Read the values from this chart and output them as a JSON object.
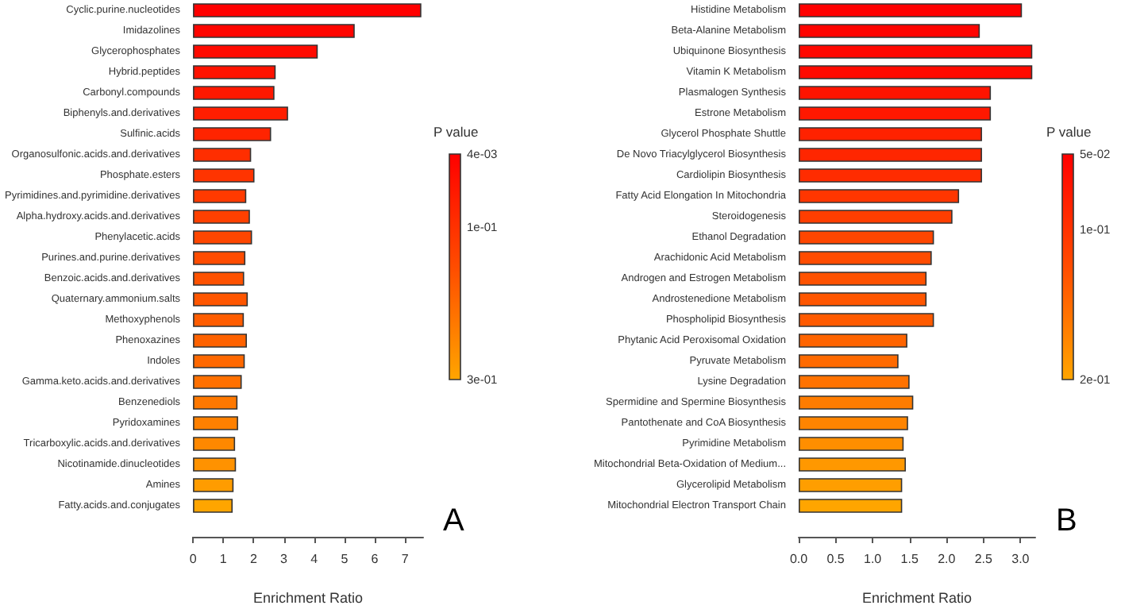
{
  "chart_data": [
    {
      "type": "bar",
      "orientation": "horizontal",
      "xlabel": "Enrichment Ratio",
      "clabel": "P value",
      "categories": [
        "Cyclic.purine.nucleotides",
        "Imidazolines",
        "Glycerophosphates",
        "Hybrid.peptides",
        "Carbonyl.compounds",
        "Biphenyls.and.derivatives",
        "Sulfinic.acids",
        "Organosulfonic.acids.and.derivatives",
        "Phosphate.esters",
        "Pyrimidines.and.pyrimidine.derivatives",
        "Alpha.hydroxy.acids.and.derivatives",
        "Phenylacetic.acids",
        "Purines.and.purine.derivatives",
        "Benzoic.acids.and.derivatives",
        "Quaternary.ammonium.salts",
        "Methoxyphenols",
        "Phenoxazines",
        "Indoles",
        "Gamma.keto.acids.and.derivatives",
        "Benzenediols",
        "Pyridoxamines",
        "Tricarboxylic.acids.and.derivatives",
        "Nicotinamide.dinucleotides",
        "Amines",
        "Fatty.acids.and.conjugates"
      ],
      "values": [
        7.54,
        5.34,
        4.12,
        2.73,
        2.69,
        3.14,
        2.58,
        1.92,
        2.03,
        1.76,
        1.88,
        1.95,
        1.73,
        1.69,
        1.81,
        1.68,
        1.78,
        1.71,
        1.61,
        1.47,
        1.49,
        1.39,
        1.42,
        1.34,
        1.31
      ],
      "colors": [
        "#ff0000",
        "#ff0500",
        "#ff0a00",
        "#ff1200",
        "#ff1800",
        "#ff1e00",
        "#ff2400",
        "#ff2e00",
        "#ff3400",
        "#ff3a00",
        "#ff4000",
        "#ff4600",
        "#ff4c00",
        "#ff5200",
        "#ff5600",
        "#ff5c00",
        "#ff6200",
        "#ff6800",
        "#ff7000",
        "#ff7800",
        "#ff8000",
        "#ff8800",
        "#ff9200",
        "#ff9c00",
        "#ffa500"
      ],
      "xlim": [
        0,
        7.6
      ],
      "xticks": [
        0,
        1,
        2,
        3,
        4,
        5,
        6,
        7
      ],
      "clim": [
        0.004,
        0.3
      ],
      "cticks": [
        {
          "value": 0.004,
          "label": "4e-03"
        },
        {
          "value": 0.1,
          "label": "1e-01"
        },
        {
          "value": 0.3,
          "label": "3e-01"
        }
      ],
      "annotations": [
        "A"
      ]
    },
    {
      "type": "bar",
      "orientation": "horizontal",
      "xlabel": "Enrichment Ratio",
      "clabel": "P value",
      "categories": [
        "Histidine Metabolism",
        "Beta-Alanine Metabolism",
        "Ubiquinone Biosynthesis",
        "Vitamin K Metabolism",
        "Plasmalogen Synthesis",
        "Estrone Metabolism",
        "Glycerol Phosphate Shuttle",
        "De Novo Triacylglycerol Biosynthesis",
        "Cardiolipin Biosynthesis",
        "Fatty Acid Elongation In Mitochondria",
        "Steroidogenesis",
        "Ethanol Degradation",
        "Arachidonic Acid Metabolism",
        "Androgen and Estrogen Metabolism",
        "Androstenedione Metabolism",
        "Phospholipid Biosynthesis",
        "Phytanic Acid Peroxisomal Oxidation",
        "Pyruvate Metabolism",
        "Lysine Degradation",
        "Spermidine and Spermine Biosynthesis",
        "Pantothenate and CoA Biosynthesis",
        "Pyrimidine Metabolism",
        "Mitochondrial Beta-Oxidation of Medium...",
        "Glycerolipid Metabolism",
        "Mitochondrial Electron Transport Chain"
      ],
      "values": [
        3.02,
        2.45,
        3.16,
        3.16,
        2.6,
        2.6,
        2.48,
        2.48,
        2.48,
        2.17,
        2.08,
        1.83,
        1.8,
        1.73,
        1.73,
        1.83,
        1.47,
        1.35,
        1.5,
        1.55,
        1.48,
        1.42,
        1.45,
        1.4,
        1.4
      ],
      "colors": [
        "#ff0000",
        "#ff0400",
        "#ff0800",
        "#ff0a00",
        "#ff1400",
        "#ff1800",
        "#ff2200",
        "#ff2600",
        "#ff2c00",
        "#ff3600",
        "#ff3e00",
        "#ff4600",
        "#ff4c00",
        "#ff5200",
        "#ff5600",
        "#ff5a00",
        "#ff6400",
        "#ff6a00",
        "#ff7200",
        "#ff7c00",
        "#ff8400",
        "#ff8e00",
        "#ff9800",
        "#ff9e00",
        "#ffa500"
      ],
      "xlim": [
        0,
        3.2
      ],
      "xticks": [
        {
          "value": 0,
          "label": "0.0"
        },
        {
          "value": 0.5,
          "label": "0.5"
        },
        {
          "value": 1,
          "label": "1.0"
        },
        {
          "value": 1.5,
          "label": "1.5"
        },
        {
          "value": 2,
          "label": "2.0"
        },
        {
          "value": 2.5,
          "label": "2.5"
        },
        {
          "value": 3,
          "label": "3.0"
        }
      ],
      "clim": [
        0.05,
        0.2
      ],
      "cticks": [
        {
          "value": 0.05,
          "label": "5e-02"
        },
        {
          "value": 0.1,
          "label": "1e-01"
        },
        {
          "value": 0.2,
          "label": "2e-01"
        }
      ],
      "annotations": [
        "B"
      ]
    }
  ]
}
